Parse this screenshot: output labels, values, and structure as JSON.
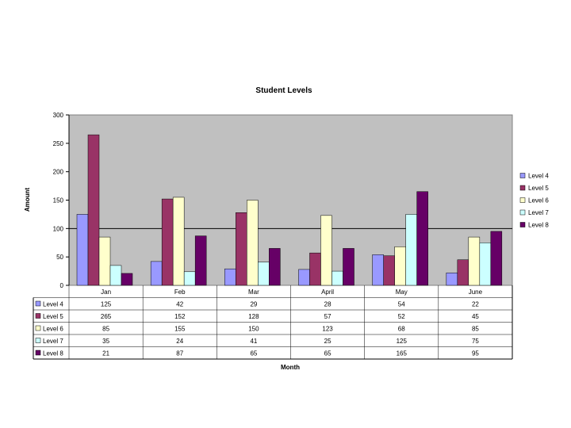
{
  "chart_data": {
    "type": "bar",
    "title": "Student Levels",
    "xlabel": "Month",
    "ylabel": "Amount",
    "ylim": [
      0,
      300
    ],
    "yticks": [
      0,
      50,
      100,
      150,
      200,
      250,
      300
    ],
    "reference_line": 100,
    "grid": false,
    "plot_background": "#c0c0c0",
    "legend_position": "right",
    "data_table": true,
    "categories": [
      "Jan",
      "Feb",
      "Mar",
      "April",
      "May",
      "June"
    ],
    "series": [
      {
        "name": "Level 4",
        "color": "#9999ff",
        "values": [
          125,
          42,
          29,
          28,
          54,
          22
        ]
      },
      {
        "name": "Level 5",
        "color": "#993366",
        "values": [
          265,
          152,
          128,
          57,
          52,
          45
        ]
      },
      {
        "name": "Level 6",
        "color": "#ffffcc",
        "values": [
          85,
          155,
          150,
          123,
          68,
          85
        ]
      },
      {
        "name": "Level 7",
        "color": "#ccffff",
        "values": [
          35,
          24,
          41,
          25,
          125,
          75
        ]
      },
      {
        "name": "Level 8",
        "color": "#660066",
        "values": [
          21,
          87,
          65,
          65,
          165,
          95
        ]
      }
    ]
  }
}
